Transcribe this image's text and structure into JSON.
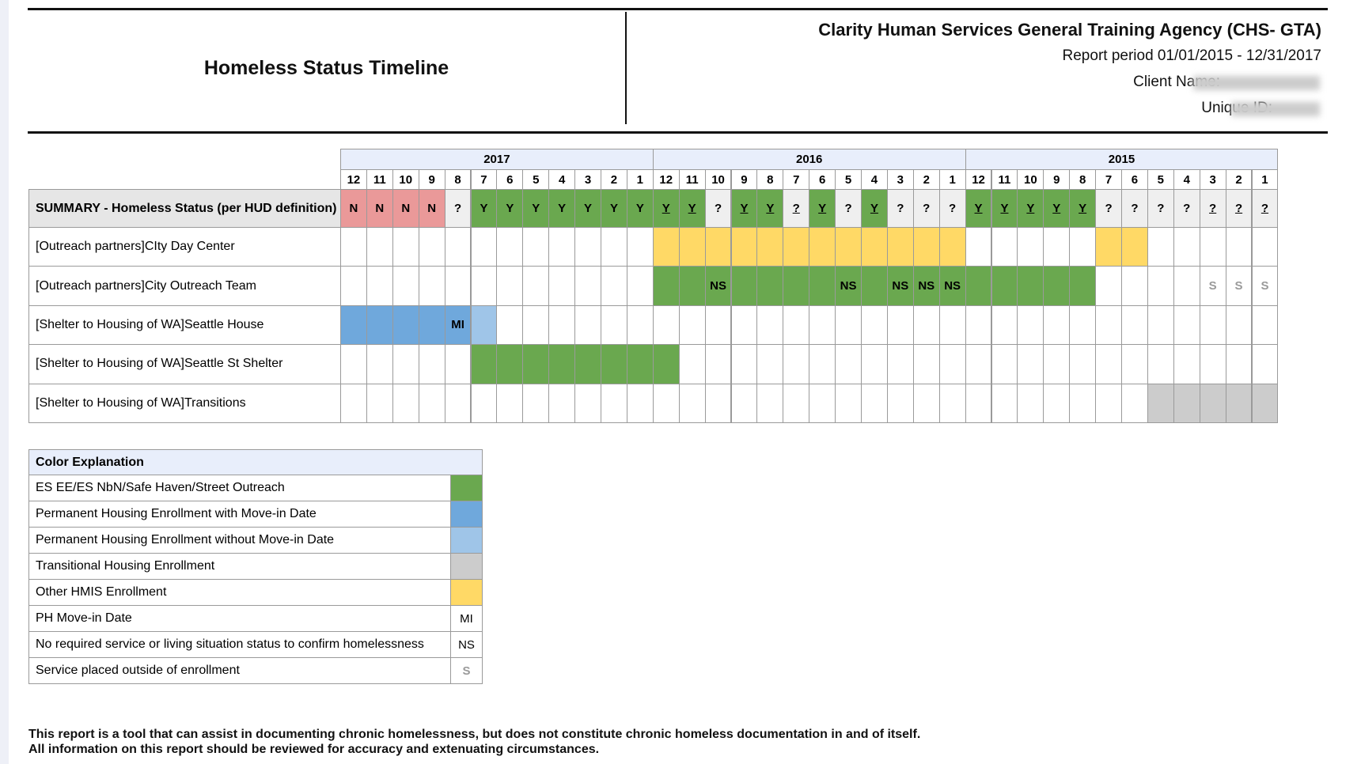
{
  "header": {
    "title": "Homeless Status Timeline",
    "agency": "Clarity Human Services General Training Agency (CHS- GTA)",
    "report_period": "Report period 01/01/2015 - 12/31/2017",
    "client_name_label": "Client Name:",
    "unique_id_label": "Unique ID:"
  },
  "palette": {
    "green": "#6aa84f",
    "blue": "#6fa8dc",
    "lightblue": "#9fc5e8",
    "gray": "#cccccc",
    "yellow": "#ffd966",
    "pink": "#ea9999",
    "lightgray": "#efefef"
  },
  "timeline": {
    "years": [
      {
        "label": "2017",
        "months": [
          "12",
          "11",
          "10",
          "9",
          "8",
          "7",
          "6",
          "5",
          "4",
          "3",
          "2",
          "1"
        ]
      },
      {
        "label": "2016",
        "months": [
          "12",
          "11",
          "10",
          "9",
          "8",
          "7",
          "6",
          "5",
          "4",
          "3",
          "2",
          "1"
        ]
      },
      {
        "label": "2015",
        "months": [
          "12",
          "11",
          "10",
          "9",
          "8",
          "7",
          "6",
          "5",
          "4",
          "3",
          "2",
          "1"
        ]
      }
    ],
    "rows": [
      {
        "label": "SUMMARY - Homeless Status (per HUD definition)",
        "cells": [
          {
            "fill": "pink",
            "text": "N"
          },
          {
            "fill": "pink",
            "text": "N"
          },
          {
            "fill": "pink",
            "text": "N"
          },
          {
            "fill": "pink",
            "text": "N"
          },
          {
            "fill": "lightgray",
            "text": "?"
          },
          {
            "fill": "green",
            "text": "Y"
          },
          {
            "fill": "green",
            "text": "Y"
          },
          {
            "fill": "green",
            "text": "Y"
          },
          {
            "fill": "green",
            "text": "Y"
          },
          {
            "fill": "green",
            "text": "Y"
          },
          {
            "fill": "green",
            "text": "Y"
          },
          {
            "fill": "green",
            "text": "Y"
          },
          {
            "fill": "green",
            "text": "Y",
            "underline": true
          },
          {
            "fill": "green",
            "text": "Y",
            "underline": true
          },
          {
            "fill": "lightgray",
            "text": "?"
          },
          {
            "fill": "green",
            "text": "Y",
            "underline": true
          },
          {
            "fill": "green",
            "text": "Y",
            "underline": true
          },
          {
            "fill": "lightgray",
            "text": "?",
            "underline": true
          },
          {
            "fill": "green",
            "text": "Y",
            "underline": true
          },
          {
            "fill": "lightgray",
            "text": "?"
          },
          {
            "fill": "green",
            "text": "Y",
            "underline": true
          },
          {
            "fill": "lightgray",
            "text": "?"
          },
          {
            "fill": "lightgray",
            "text": "?"
          },
          {
            "fill": "lightgray",
            "text": "?"
          },
          {
            "fill": "green",
            "text": "Y",
            "underline": true
          },
          {
            "fill": "green",
            "text": "Y",
            "underline": true
          },
          {
            "fill": "green",
            "text": "Y",
            "underline": true
          },
          {
            "fill": "green",
            "text": "Y",
            "underline": true
          },
          {
            "fill": "green",
            "text": "Y",
            "underline": true
          },
          {
            "fill": "lightgray",
            "text": "?"
          },
          {
            "fill": "lightgray",
            "text": "?"
          },
          {
            "fill": "lightgray",
            "text": "?"
          },
          {
            "fill": "lightgray",
            "text": "?"
          },
          {
            "fill": "lightgray",
            "text": "?",
            "underline": true
          },
          {
            "fill": "lightgray",
            "text": "?",
            "underline": true
          },
          {
            "fill": "lightgray",
            "text": "?",
            "underline": true
          }
        ]
      },
      {
        "label": "[Outreach partners]CIty Day Center",
        "cells": [
          null,
          null,
          null,
          null,
          null,
          null,
          null,
          null,
          null,
          null,
          null,
          null,
          {
            "fill": "yellow"
          },
          {
            "fill": "yellow"
          },
          {
            "fill": "yellow"
          },
          {
            "fill": "yellow"
          },
          {
            "fill": "yellow"
          },
          {
            "fill": "yellow"
          },
          {
            "fill": "yellow"
          },
          {
            "fill": "yellow"
          },
          {
            "fill": "yellow"
          },
          {
            "fill": "yellow"
          },
          {
            "fill": "yellow"
          },
          {
            "fill": "yellow"
          },
          null,
          null,
          null,
          null,
          null,
          {
            "fill": "yellow"
          },
          {
            "fill": "yellow"
          },
          null,
          null,
          null,
          null,
          null
        ]
      },
      {
        "label": "[Outreach partners]City Outreach Team",
        "cells": [
          null,
          null,
          null,
          null,
          null,
          null,
          null,
          null,
          null,
          null,
          null,
          null,
          {
            "fill": "green"
          },
          {
            "fill": "green"
          },
          {
            "fill": "green",
            "text": "NS"
          },
          {
            "fill": "green"
          },
          {
            "fill": "green"
          },
          {
            "fill": "green"
          },
          {
            "fill": "green"
          },
          {
            "fill": "green",
            "text": "NS"
          },
          {
            "fill": "green"
          },
          {
            "fill": "green",
            "text": "NS"
          },
          {
            "fill": "green",
            "text": "NS"
          },
          {
            "fill": "green",
            "text": "NS"
          },
          {
            "fill": "green"
          },
          {
            "fill": "green"
          },
          {
            "fill": "green"
          },
          {
            "fill": "green"
          },
          {
            "fill": "green"
          },
          null,
          null,
          null,
          null,
          {
            "text": "S",
            "muted": true
          },
          {
            "text": "S",
            "muted": true
          },
          {
            "text": "S",
            "muted": true
          }
        ]
      },
      {
        "label": "[Shelter to Housing of WA]Seattle House",
        "cells": [
          {
            "fill": "blue"
          },
          {
            "fill": "blue"
          },
          {
            "fill": "blue"
          },
          {
            "fill": "blue"
          },
          {
            "fill": "blue",
            "text": "MI"
          },
          {
            "fill": "lightblue"
          },
          null,
          null,
          null,
          null,
          null,
          null,
          null,
          null,
          null,
          null,
          null,
          null,
          null,
          null,
          null,
          null,
          null,
          null,
          null,
          null,
          null,
          null,
          null,
          null,
          null,
          null,
          null,
          null,
          null,
          null
        ]
      },
      {
        "label": "[Shelter to Housing of WA]Seattle St Shelter",
        "cells": [
          null,
          null,
          null,
          null,
          null,
          {
            "fill": "green"
          },
          {
            "fill": "green"
          },
          {
            "fill": "green"
          },
          {
            "fill": "green"
          },
          {
            "fill": "green"
          },
          {
            "fill": "green"
          },
          {
            "fill": "green"
          },
          {
            "fill": "green"
          },
          null,
          null,
          null,
          null,
          null,
          null,
          null,
          null,
          null,
          null,
          null,
          null,
          null,
          null,
          null,
          null,
          null,
          null,
          null,
          null,
          null,
          null,
          null
        ]
      },
      {
        "label": "[Shelter to Housing of WA]Transitions",
        "cells": [
          null,
          null,
          null,
          null,
          null,
          null,
          null,
          null,
          null,
          null,
          null,
          null,
          null,
          null,
          null,
          null,
          null,
          null,
          null,
          null,
          null,
          null,
          null,
          null,
          null,
          null,
          null,
          null,
          null,
          null,
          null,
          {
            "fill": "gray"
          },
          {
            "fill": "gray"
          },
          {
            "fill": "gray"
          },
          {
            "fill": "gray"
          },
          {
            "fill": "gray"
          }
        ]
      }
    ]
  },
  "legend": {
    "title": "Color Explanation",
    "items": [
      {
        "label": "ES EE/ES NbN/Safe Haven/Street Outreach",
        "fill": "green"
      },
      {
        "label": "Permanent Housing Enrollment with Move-in Date",
        "fill": "blue"
      },
      {
        "label": "Permanent Housing Enrollment without Move-in Date",
        "fill": "lightblue"
      },
      {
        "label": "Transitional Housing Enrollment",
        "fill": "gray"
      },
      {
        "label": "Other HMIS Enrollment",
        "fill": "yellow"
      },
      {
        "label": "PH Move-in Date",
        "text": "MI"
      },
      {
        "label": "No required service or living situation status to confirm homelessness",
        "text": "NS"
      },
      {
        "label": "Service placed outside of enrollment",
        "text": "S",
        "muted": true
      }
    ]
  },
  "footer": {
    "lines": [
      "This report is a tool that can assist in documenting chronic homelessness, but does not constitute chronic homeless documentation in and of itself.",
      "All information on this report should be reviewed for accuracy and extenuating circumstances."
    ]
  }
}
